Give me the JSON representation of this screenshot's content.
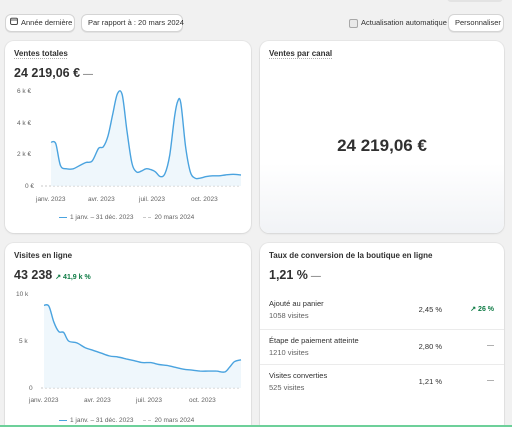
{
  "toolbar": {
    "date_range": "Année dernière",
    "compare": "Par rapport à : 20 mars 2024",
    "auto_refresh": "Actualisation automatique",
    "customize": "Personnaliser"
  },
  "cards": {
    "sales": {
      "title": "Ventes totales",
      "value": "24 219,06 €",
      "dash": "—",
      "y_ticks": [
        "6 k €",
        "4 k €",
        "2 k €",
        "0 €"
      ],
      "x_ticks": [
        "janv. 2023",
        "avr. 2023",
        "juil. 2023",
        "oct. 2023"
      ],
      "legend_current": "1 janv. – 31 déc. 2023",
      "legend_compare": "20 mars 2024"
    },
    "channel": {
      "title": "Ventes par canal",
      "value": "24 219,06 €"
    },
    "visits": {
      "title": "Visites en ligne",
      "value": "43 238",
      "delta": "↗ 41,9 k %",
      "y_ticks": [
        "10 k",
        "5 k",
        "0"
      ],
      "x_ticks": [
        "janv. 2023",
        "avr. 2023",
        "juil. 2023",
        "oct. 2023"
      ],
      "legend_current": "1 janv. – 31 déc. 2023",
      "legend_compare": "20 mars 2024"
    },
    "conversion": {
      "title": "Taux de conversion de la boutique en ligne",
      "value": "1,21 %",
      "dash": "—",
      "rows": [
        {
          "label": "Ajouté au panier",
          "sub": "1058 visites",
          "pct": "2,45 %",
          "change": "↗ 26 %"
        },
        {
          "label": "Étape de paiement atteinte",
          "sub": "1210 visites",
          "pct": "2,80 %",
          "change": "—"
        },
        {
          "label": "Visites converties",
          "sub": "525 visites",
          "pct": "1,21 %",
          "change": "—"
        }
      ]
    }
  },
  "colors": {
    "series": "#4aa3df",
    "compare": "#c9c9c9",
    "positive": "#0c7a43"
  },
  "chart_data": [
    {
      "type": "line",
      "title": "Ventes totales",
      "x_ticks": [
        "janv. 2023",
        "avr. 2023",
        "juil. 2023",
        "oct. 2023"
      ],
      "ylim": [
        0,
        6000
      ],
      "y_ticks": [
        0,
        2000,
        4000,
        6000
      ],
      "series": [
        {
          "name": "1 janv. – 31 déc. 2023",
          "x": [
            0,
            0.3,
            0.6,
            1,
            1.4,
            1.8,
            2.2,
            2.6,
            3,
            3.3,
            3.6,
            3.9,
            4.2,
            4.5,
            4.8,
            5.1,
            5.4,
            5.7,
            6,
            6.3,
            6.6,
            6.9,
            7.2,
            7.5,
            7.8,
            8,
            8.2,
            8.5,
            8.8,
            9.1,
            9.4,
            9.8,
            10.2,
            10.6,
            11,
            11.5,
            12
          ],
          "y": [
            2800,
            2700,
            1300,
            1100,
            1100,
            1300,
            1500,
            1600,
            2400,
            2500,
            3200,
            4600,
            5900,
            5800,
            3500,
            1500,
            900,
            950,
            1100,
            1050,
            900,
            600,
            800,
            2000,
            4400,
            5400,
            5300,
            2500,
            900,
            500,
            500,
            600,
            650,
            650,
            700,
            750,
            700
          ]
        },
        {
          "name": "20 mars 2024",
          "x": [
            0,
            12
          ],
          "y": [
            0,
            0
          ]
        }
      ]
    },
    {
      "type": "line",
      "title": "Visites en ligne",
      "x_ticks": [
        "janv. 2023",
        "avr. 2023",
        "juil. 2023",
        "oct. 2023"
      ],
      "ylim": [
        0,
        10000
      ],
      "y_ticks": [
        0,
        5000,
        10000
      ],
      "series": [
        {
          "name": "1 janv. – 31 déc. 2023",
          "x": [
            0,
            0.3,
            0.6,
            0.9,
            1.2,
            1.5,
            2,
            2.5,
            3,
            3.5,
            4,
            4.5,
            5,
            5.5,
            6,
            6.5,
            7,
            7.5,
            8,
            8.5,
            9,
            9.5,
            10,
            10.5,
            11,
            11.3,
            11.6,
            12
          ],
          "y": [
            8800,
            8700,
            7000,
            6000,
            5900,
            5000,
            4800,
            4300,
            4000,
            3700,
            3400,
            3300,
            3100,
            2900,
            2700,
            2700,
            2500,
            2400,
            2200,
            2000,
            1900,
            1800,
            1800,
            1800,
            1700,
            2200,
            2800,
            3000
          ]
        },
        {
          "name": "20 mars 2024",
          "x": [
            0,
            12
          ],
          "y": [
            0,
            0
          ]
        }
      ]
    }
  ]
}
